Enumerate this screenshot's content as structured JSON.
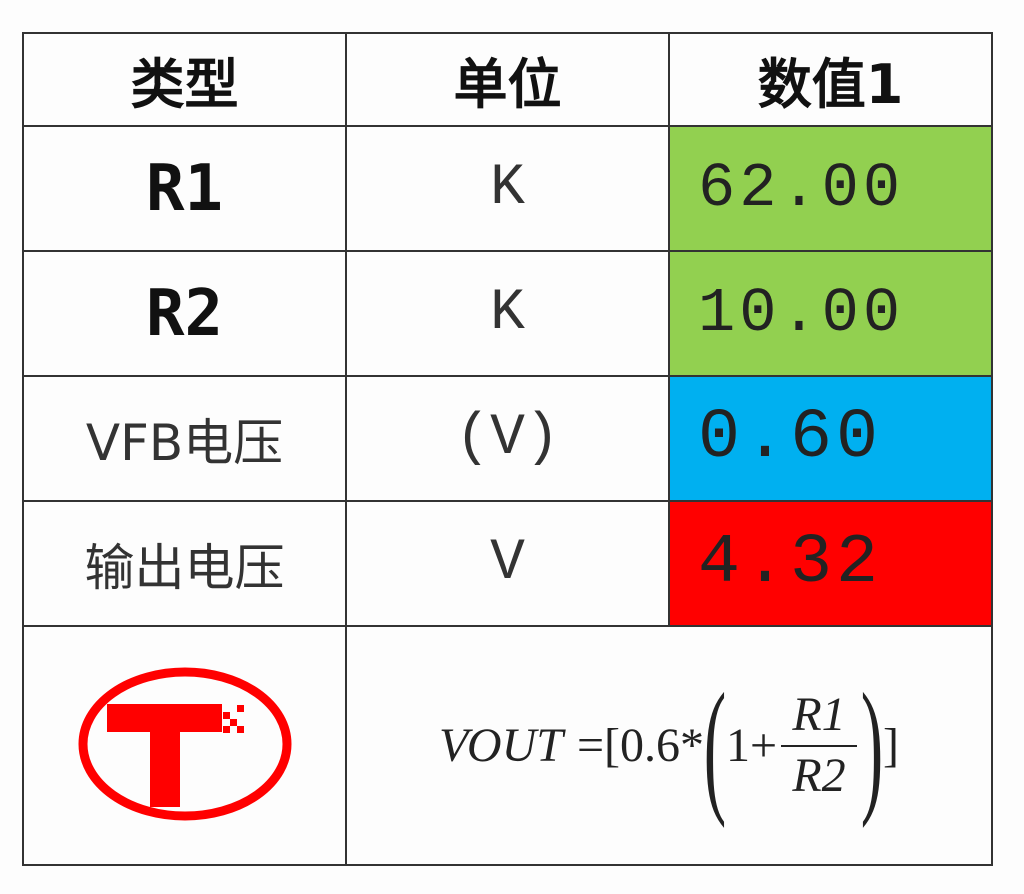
{
  "headers": [
    "类型",
    "单位",
    "数值1"
  ],
  "rows": [
    {
      "type": "R1",
      "unit": "K",
      "value": "62.00",
      "color": "#92d050"
    },
    {
      "type": "R2",
      "unit": "K",
      "value": "10.00",
      "color": "#92d050"
    },
    {
      "type": "VFB电压",
      "unit": "(V)",
      "value": "0.60",
      "color": "#00b0f0"
    },
    {
      "type": "输出电压",
      "unit": "V",
      "value": "4.32",
      "color": "#ff0000"
    }
  ],
  "logo": {
    "letter": "T",
    "color": "#ff0000"
  },
  "formula": {
    "lhs": "VOUT",
    "eq": "=[0.6*",
    "one_plus": "1+",
    "num": "R1",
    "den": "R2",
    "close": "]"
  }
}
